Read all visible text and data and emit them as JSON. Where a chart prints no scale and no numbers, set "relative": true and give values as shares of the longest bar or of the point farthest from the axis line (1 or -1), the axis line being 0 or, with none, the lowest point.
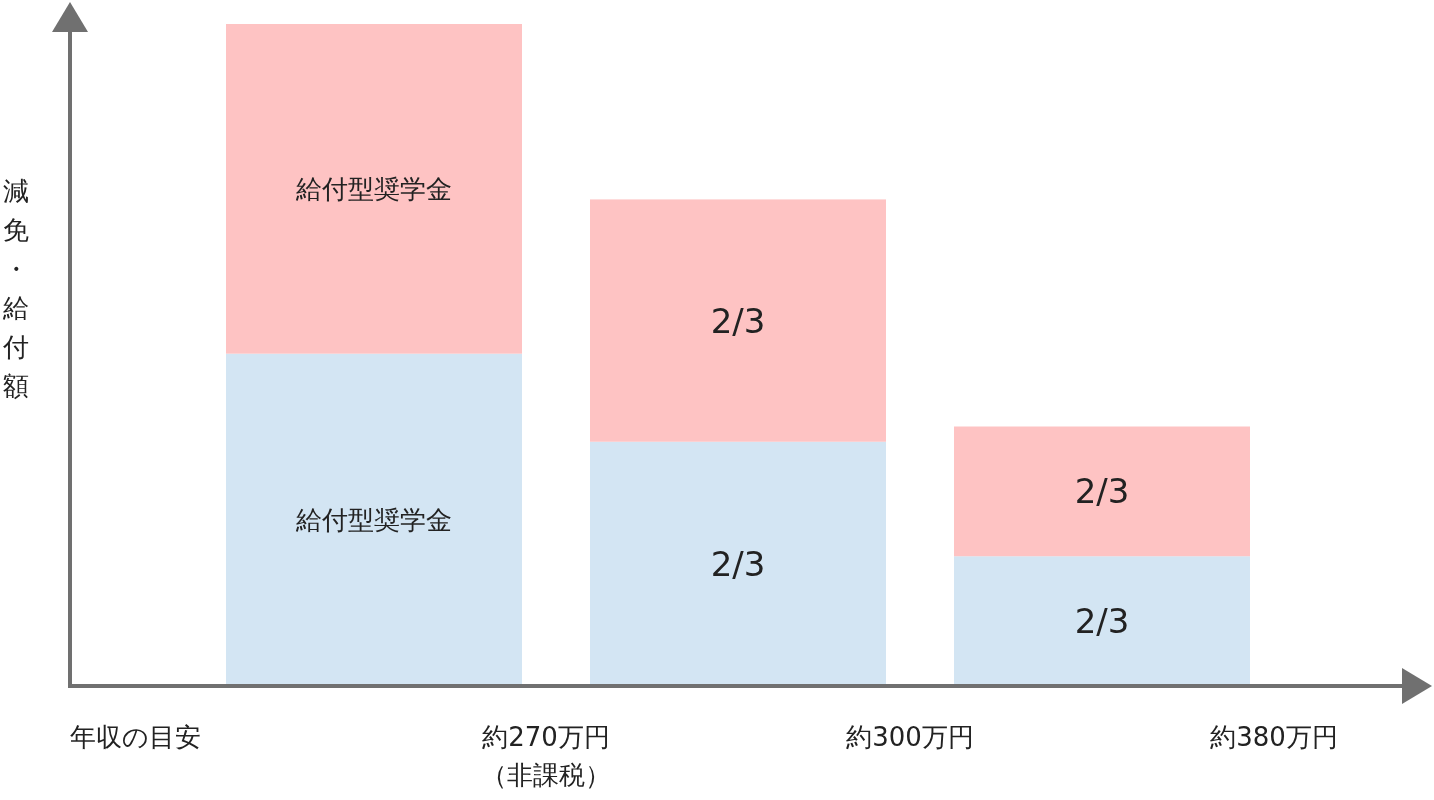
{
  "chart_data": {
    "type": "bar",
    "stacked": true,
    "relative": true,
    "xlabel": "年収の目安",
    "ylabel": "減免・給付額",
    "categories": [
      null,
      null,
      null
    ],
    "series": [
      {
        "color": "#d3e5f3",
        "values": [
          0.502,
          0.369,
          0.196
        ]
      },
      {
        "color": "#fec3c3",
        "values": [
          0.498,
          0.366,
          0.196
        ]
      }
    ],
    "annotations": [
      "約270万円（非課税）",
      "約300万円",
      "約380万円",
      "給付型奨学金",
      "2/3",
      "2/3",
      "給付型奨学金",
      "2/3",
      "2/3"
    ]
  }
}
